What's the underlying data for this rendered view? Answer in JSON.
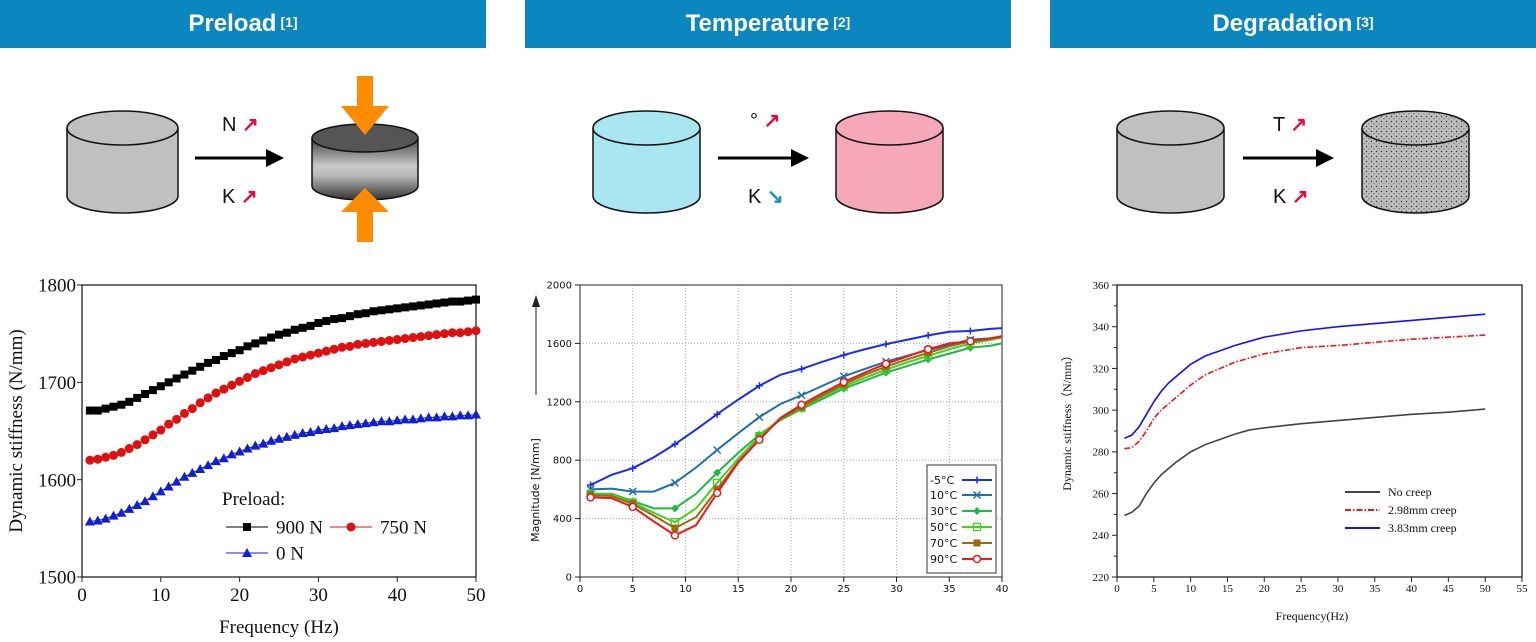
{
  "headers": [
    {
      "title": "Preload",
      "ref": "[1]"
    },
    {
      "title": "Temperature",
      "ref": "[2]"
    },
    {
      "title": "Degradation",
      "ref": "[3]"
    }
  ],
  "diagrams": [
    {
      "top_label": "N",
      "top_trend": "↗",
      "bottom_label": "K",
      "bottom_trend": "↗",
      "before": "gray cylinder",
      "after": "compressed cylinder with orange force arrows"
    },
    {
      "top_label": "°",
      "top_trend": "↗",
      "bottom_label": "K",
      "bottom_trend": "↘",
      "before": "cyan cylinder",
      "after": "pink cylinder"
    },
    {
      "top_label": "T",
      "top_trend": "↗",
      "bottom_label": "K",
      "bottom_trend": "↗",
      "before": "gray cylinder",
      "after": "dotted degraded cylinder"
    }
  ],
  "colors": {
    "header": "#0b86bf",
    "increase": "#e0103c",
    "decrease": "#1b8fc9",
    "force_arrow": "#ff8c00",
    "cyl_gray": "#c0c0c0",
    "cyl_cold": "#a8e6f2",
    "cyl_hot": "#f7a8b8"
  },
  "chart_data": [
    {
      "type": "line",
      "xlabel": "Frequency (Hz)",
      "ylabel": "Dynamic stiffness (N/mm)",
      "xlim": [
        0,
        50
      ],
      "ylim": [
        1500,
        1800
      ],
      "xticks": [
        0,
        10,
        20,
        30,
        40,
        50
      ],
      "yticks": [
        1500,
        1600,
        1700,
        1800
      ],
      "grid": false,
      "legend_title": "Preload:",
      "legend_position": "bottom-right",
      "x": [
        1,
        2,
        3,
        4,
        5,
        6,
        7,
        8,
        9,
        10,
        11,
        12,
        13,
        14,
        15,
        16,
        17,
        18,
        19,
        20,
        21,
        22,
        23,
        24,
        25,
        26,
        27,
        28,
        29,
        30,
        31,
        32,
        33,
        34,
        35,
        36,
        37,
        38,
        39,
        40,
        41,
        42,
        43,
        44,
        45,
        46,
        47,
        48,
        49,
        50
      ],
      "series": [
        {
          "name": "900 N",
          "color": "#000000",
          "marker": "square",
          "values": [
            1671,
            1671,
            1673,
            1675,
            1677,
            1680,
            1684,
            1688,
            1692,
            1696,
            1700,
            1704,
            1708,
            1712,
            1716,
            1720,
            1723,
            1727,
            1730,
            1733,
            1737,
            1740,
            1743,
            1746,
            1749,
            1751,
            1754,
            1756,
            1758,
            1761,
            1763,
            1765,
            1766,
            1768,
            1770,
            1771,
            1773,
            1774,
            1775,
            1776,
            1777,
            1778,
            1779,
            1780,
            1781,
            1782,
            1783,
            1783,
            1784,
            1785
          ]
        },
        {
          "name": "750 N",
          "color": "#e01010",
          "marker": "circle",
          "values": [
            1620,
            1621,
            1623,
            1625,
            1628,
            1632,
            1636,
            1641,
            1646,
            1651,
            1657,
            1662,
            1668,
            1673,
            1679,
            1684,
            1689,
            1693,
            1697,
            1701,
            1705,
            1709,
            1712,
            1715,
            1718,
            1721,
            1724,
            1726,
            1728,
            1730,
            1732,
            1734,
            1736,
            1737,
            1739,
            1740,
            1741,
            1742,
            1743,
            1744,
            1745,
            1746,
            1747,
            1748,
            1749,
            1750,
            1751,
            1751,
            1752,
            1753
          ]
        },
        {
          "name": "0 N",
          "color": "#1020d0",
          "marker": "triangle",
          "values": [
            1557,
            1558,
            1560,
            1563,
            1566,
            1570,
            1574,
            1578,
            1583,
            1588,
            1593,
            1598,
            1603,
            1607,
            1611,
            1615,
            1619,
            1622,
            1626,
            1629,
            1632,
            1635,
            1637,
            1640,
            1642,
            1644,
            1646,
            1648,
            1649,
            1651,
            1652,
            1653,
            1655,
            1656,
            1657,
            1658,
            1659,
            1660,
            1660,
            1661,
            1662,
            1662,
            1663,
            1664,
            1664,
            1665,
            1665,
            1666,
            1666,
            1667
          ]
        }
      ]
    },
    {
      "type": "line",
      "xlabel": "",
      "ylabel": "Magnitude [N/mm]",
      "xlim": [
        0,
        40
      ],
      "ylim": [
        0,
        2000
      ],
      "xticks": [
        0,
        5,
        10,
        15,
        20,
        25,
        30,
        35,
        40
      ],
      "yticks": [
        0,
        400,
        800,
        1200,
        1600,
        2000
      ],
      "grid": true,
      "legend_position": "bottom-right",
      "x": [
        1,
        3,
        5,
        7,
        9,
        11,
        13,
        15,
        17,
        19,
        21,
        23,
        25,
        27,
        29,
        31,
        33,
        35,
        37,
        39,
        40
      ],
      "series": [
        {
          "name": "-5°C",
          "color": "#1a2cf0",
          "marker": "plus",
          "values": [
            630,
            700,
            745,
            820,
            910,
            1010,
            1115,
            1215,
            1310,
            1385,
            1425,
            1475,
            1520,
            1560,
            1595,
            1625,
            1655,
            1680,
            1685,
            1700,
            1705
          ]
        },
        {
          "name": "10°C",
          "color": "#1f6fb0",
          "marker": "x",
          "values": [
            600,
            605,
            585,
            585,
            645,
            750,
            870,
            985,
            1095,
            1185,
            1245,
            1310,
            1375,
            1425,
            1475,
            1515,
            1555,
            1590,
            1625,
            1635,
            1645
          ]
        },
        {
          "name": "30°C",
          "color": "#22b848",
          "marker": "star",
          "values": [
            570,
            570,
            520,
            470,
            470,
            570,
            715,
            850,
            975,
            1075,
            1150,
            1220,
            1290,
            1345,
            1400,
            1445,
            1490,
            1530,
            1570,
            1585,
            1600
          ]
        },
        {
          "name": "50°C",
          "color": "#44d020",
          "marker": "hollow-square",
          "values": [
            570,
            565,
            510,
            440,
            375,
            470,
            645,
            810,
            965,
            1085,
            1160,
            1235,
            1305,
            1365,
            1420,
            1470,
            1515,
            1560,
            1600,
            1625,
            1640
          ]
        },
        {
          "name": "70°C",
          "color": "#9a6a10",
          "marker": "square",
          "values": [
            560,
            555,
            500,
            420,
            335,
            410,
            600,
            790,
            945,
            1085,
            1165,
            1245,
            1320,
            1385,
            1440,
            1490,
            1535,
            1580,
            1615,
            1635,
            1645
          ]
        },
        {
          "name": "90°C",
          "color": "#f01818",
          "marker": "hollow-circle",
          "values": [
            545,
            540,
            480,
            380,
            285,
            355,
            575,
            785,
            940,
            1090,
            1180,
            1260,
            1335,
            1400,
            1460,
            1510,
            1560,
            1600,
            1615,
            1635,
            1650
          ]
        }
      ]
    },
    {
      "type": "line",
      "xlabel": "Frequency(Hz)",
      "ylabel": "Dynamic stiffness（N/mm）",
      "xlim": [
        0,
        55
      ],
      "ylim": [
        220,
        360
      ],
      "xticks": [
        0,
        5,
        10,
        15,
        20,
        25,
        30,
        35,
        40,
        45,
        50,
        55
      ],
      "yticks": [
        220,
        240,
        260,
        280,
        300,
        320,
        340,
        360
      ],
      "grid": false,
      "legend_position": "bottom-right",
      "x": [
        1,
        2,
        3,
        4,
        5,
        6,
        7,
        8,
        10,
        12,
        14,
        16,
        18,
        20,
        25,
        30,
        35,
        40,
        45,
        50
      ],
      "series": [
        {
          "name": "No creep",
          "color": "#444444",
          "style": "solid",
          "values": [
            249.5,
            251,
            254,
            260,
            265,
            269,
            272,
            275,
            280,
            283.5,
            286,
            288.5,
            290.5,
            291.5,
            293.5,
            295,
            296.5,
            298,
            299,
            300.5
          ]
        },
        {
          "name": "2.98mm creep",
          "color": "#ff1010",
          "style": "dashdot",
          "values": [
            281.5,
            282,
            285,
            290,
            296,
            300,
            303,
            306,
            312,
            317,
            320,
            323,
            325,
            327,
            330,
            331,
            332.5,
            334,
            335,
            336
          ]
        },
        {
          "name": "3.83mm creep",
          "color": "#1010ff",
          "style": "solid",
          "values": [
            286.5,
            288,
            292,
            298,
            304,
            309,
            313,
            316,
            322,
            326,
            328.5,
            331,
            333,
            335,
            338,
            340,
            341.5,
            343,
            344.5,
            346
          ]
        }
      ]
    }
  ]
}
